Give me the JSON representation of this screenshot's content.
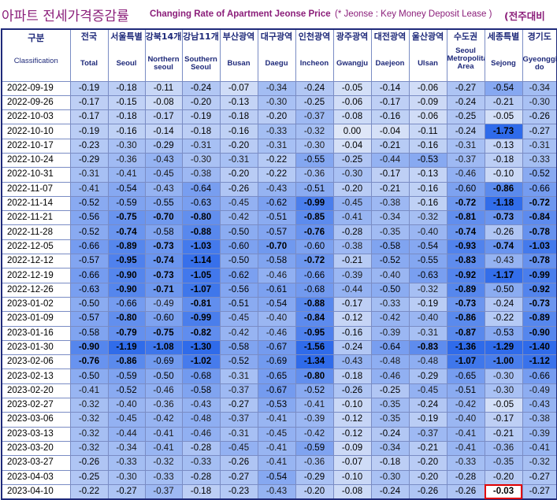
{
  "header": {
    "title_ko": "아파트 전세가격증감률",
    "title_en": "Changing Rate of Apartment Jeonse Price",
    "title_note": "(* Jeonse : Key Money Deposit Lease )",
    "comparison_label": "(전주대비"
  },
  "chart_data": {
    "type": "table",
    "row_header": {
      "ko": "구분",
      "en": "Classification"
    },
    "columns": [
      {
        "ko": "전국",
        "en": "Total"
      },
      {
        "ko": "서울특별",
        "en": "Seoul"
      },
      {
        "ko": "강북14개",
        "en": "Northern seoul"
      },
      {
        "ko": "강남11개",
        "en": "Southern Seoul"
      },
      {
        "ko": "부산광역",
        "en": "Busan"
      },
      {
        "ko": "대구광역",
        "en": "Daegu"
      },
      {
        "ko": "인천광역",
        "en": "Incheon"
      },
      {
        "ko": "광주광역",
        "en": "Gwangju"
      },
      {
        "ko": "대전광역",
        "en": "Daejeon"
      },
      {
        "ko": "울산광역",
        "en": "Ulsan"
      },
      {
        "ko": "수도권",
        "en": "Seoul Metropolitan Area"
      },
      {
        "ko": "세종특별",
        "en": "Sejong"
      },
      {
        "ko": "경기도",
        "en": "Gyeonggi-do"
      }
    ],
    "dates": [
      "2022-09-19",
      "2022-09-26",
      "2022-10-03",
      "2022-10-10",
      "2022-10-17",
      "2022-10-24",
      "2022-10-31",
      "2022-11-07",
      "2022-11-14",
      "2022-11-21",
      "2022-11-28",
      "2022-12-05",
      "2022-12-12",
      "2022-12-19",
      "2022-12-26",
      "2023-01-02",
      "2023-01-09",
      "2023-01-16",
      "2023-01-30",
      "2023-02-06",
      "2023-02-13",
      "2023-02-20",
      "2023-02-27",
      "2023-03-06",
      "2023-03-13",
      "2023-03-20",
      "2023-03-27",
      "2023-04-03",
      "2023-04-10"
    ],
    "values": [
      [
        -0.19,
        -0.18,
        -0.11,
        -0.24,
        -0.07,
        -0.34,
        -0.24,
        -0.05,
        -0.14,
        -0.06,
        -0.27,
        -0.54,
        -0.34
      ],
      [
        -0.17,
        -0.15,
        -0.08,
        -0.2,
        -0.13,
        -0.3,
        -0.25,
        -0.06,
        -0.17,
        -0.09,
        -0.24,
        -0.21,
        -0.3
      ],
      [
        -0.17,
        -0.18,
        -0.17,
        -0.19,
        -0.18,
        -0.2,
        -0.37,
        -0.08,
        -0.16,
        -0.06,
        -0.25,
        -0.05,
        -0.26
      ],
      [
        -0.19,
        -0.16,
        -0.14,
        -0.18,
        -0.16,
        -0.33,
        -0.32,
        0.0,
        -0.04,
        -0.11,
        -0.24,
        -1.73,
        -0.27
      ],
      [
        -0.23,
        -0.3,
        -0.29,
        -0.31,
        -0.2,
        -0.31,
        -0.3,
        -0.04,
        -0.21,
        -0.16,
        -0.31,
        -0.13,
        -0.31
      ],
      [
        -0.29,
        -0.36,
        -0.43,
        -0.3,
        -0.31,
        -0.22,
        -0.55,
        -0.25,
        -0.44,
        -0.53,
        -0.37,
        -0.18,
        -0.33
      ],
      [
        -0.31,
        -0.41,
        -0.45,
        -0.38,
        -0.2,
        -0.22,
        -0.36,
        -0.3,
        -0.17,
        -0.13,
        -0.46,
        -0.1,
        -0.52
      ],
      [
        -0.41,
        -0.54,
        -0.43,
        -0.64,
        -0.26,
        -0.43,
        -0.51,
        -0.2,
        -0.21,
        -0.16,
        -0.6,
        -0.86,
        -0.66
      ],
      [
        -0.52,
        -0.59,
        -0.55,
        -0.63,
        -0.45,
        -0.62,
        -0.99,
        -0.45,
        -0.38,
        -0.16,
        -0.72,
        -1.18,
        -0.72
      ],
      [
        -0.56,
        -0.75,
        -0.7,
        -0.8,
        -0.42,
        -0.51,
        -0.85,
        -0.41,
        -0.34,
        -0.32,
        -0.81,
        -0.73,
        -0.84
      ],
      [
        -0.52,
        -0.74,
        -0.58,
        -0.88,
        -0.5,
        -0.57,
        -0.76,
        -0.28,
        -0.35,
        -0.4,
        -0.74,
        -0.26,
        -0.78
      ],
      [
        -0.66,
        -0.89,
        -0.73,
        -1.03,
        -0.6,
        -0.7,
        -0.6,
        -0.38,
        -0.58,
        -0.54,
        -0.93,
        -0.74,
        -1.03
      ],
      [
        -0.57,
        -0.95,
        -0.74,
        -1.14,
        -0.5,
        -0.58,
        -0.72,
        -0.21,
        -0.52,
        -0.55,
        -0.83,
        -0.43,
        -0.78
      ],
      [
        -0.66,
        -0.9,
        -0.73,
        -1.05,
        -0.62,
        -0.46,
        -0.66,
        -0.39,
        -0.4,
        -0.63,
        -0.92,
        -1.17,
        -0.99
      ],
      [
        -0.63,
        -0.9,
        -0.71,
        -1.07,
        -0.56,
        -0.61,
        -0.68,
        -0.44,
        -0.5,
        -0.32,
        -0.89,
        -0.5,
        -0.92
      ],
      [
        -0.5,
        -0.66,
        -0.49,
        -0.81,
        -0.51,
        -0.54,
        -0.88,
        -0.17,
        -0.33,
        -0.19,
        -0.73,
        -0.24,
        -0.73
      ],
      [
        -0.57,
        -0.8,
        -0.6,
        -0.99,
        -0.45,
        -0.4,
        -0.84,
        -0.12,
        -0.42,
        -0.4,
        -0.86,
        -0.22,
        -0.89
      ],
      [
        -0.58,
        -0.79,
        -0.75,
        -0.82,
        -0.42,
        -0.46,
        -0.95,
        -0.16,
        -0.39,
        -0.31,
        -0.87,
        -0.53,
        -0.9
      ],
      [
        -0.9,
        -1.19,
        -1.08,
        -1.3,
        -0.58,
        -0.67,
        -1.56,
        -0.24,
        -0.64,
        -0.83,
        -1.36,
        -1.29,
        -1.4
      ],
      [
        -0.76,
        -0.86,
        -0.69,
        -1.02,
        -0.52,
        -0.69,
        -1.34,
        -0.43,
        -0.48,
        -0.48,
        -1.07,
        -1.0,
        -1.12
      ],
      [
        -0.5,
        -0.59,
        -0.5,
        -0.68,
        -0.31,
        -0.65,
        -0.8,
        -0.18,
        -0.46,
        -0.29,
        -0.65,
        -0.3,
        -0.66
      ],
      [
        -0.41,
        -0.52,
        -0.46,
        -0.58,
        -0.37,
        -0.67,
        -0.52,
        -0.26,
        -0.25,
        -0.45,
        -0.51,
        -0.3,
        -0.49
      ],
      [
        -0.32,
        -0.4,
        -0.36,
        -0.43,
        -0.27,
        -0.53,
        -0.41,
        -0.1,
        -0.35,
        -0.24,
        -0.42,
        -0.05,
        -0.43
      ],
      [
        -0.32,
        -0.45,
        -0.42,
        -0.48,
        -0.37,
        -0.41,
        -0.39,
        -0.12,
        -0.35,
        -0.19,
        -0.4,
        -0.17,
        -0.38
      ],
      [
        -0.32,
        -0.44,
        -0.41,
        -0.46,
        -0.31,
        -0.45,
        -0.42,
        -0.12,
        -0.24,
        -0.37,
        -0.41,
        -0.21,
        -0.39
      ],
      [
        -0.32,
        -0.34,
        -0.41,
        -0.28,
        -0.45,
        -0.41,
        -0.59,
        -0.09,
        -0.34,
        -0.21,
        -0.41,
        -0.36,
        -0.41
      ],
      [
        -0.26,
        -0.33,
        -0.32,
        -0.33,
        -0.26,
        -0.41,
        -0.36,
        -0.07,
        -0.18,
        -0.2,
        -0.33,
        -0.35,
        -0.32
      ],
      [
        -0.25,
        -0.3,
        -0.33,
        -0.28,
        -0.27,
        -0.54,
        -0.29,
        -0.1,
        -0.3,
        -0.2,
        -0.28,
        -0.2,
        -0.27
      ],
      [
        -0.22,
        -0.27,
        -0.37,
        -0.18,
        -0.23,
        -0.43,
        -0.2,
        -0.08,
        -0.24,
        -0.26,
        -0.26,
        -0.03,
        -0.27
      ]
    ],
    "highlighted_cell": {
      "date": "2023-04-10",
      "column": "Sejong"
    },
    "colors": {
      "header_text": "#1f2a7a",
      "title": "#8b1e7a",
      "highlight_border": "#e00000",
      "scale_light": "#dfe7f8",
      "scale_dark": "#2f6bea"
    }
  }
}
